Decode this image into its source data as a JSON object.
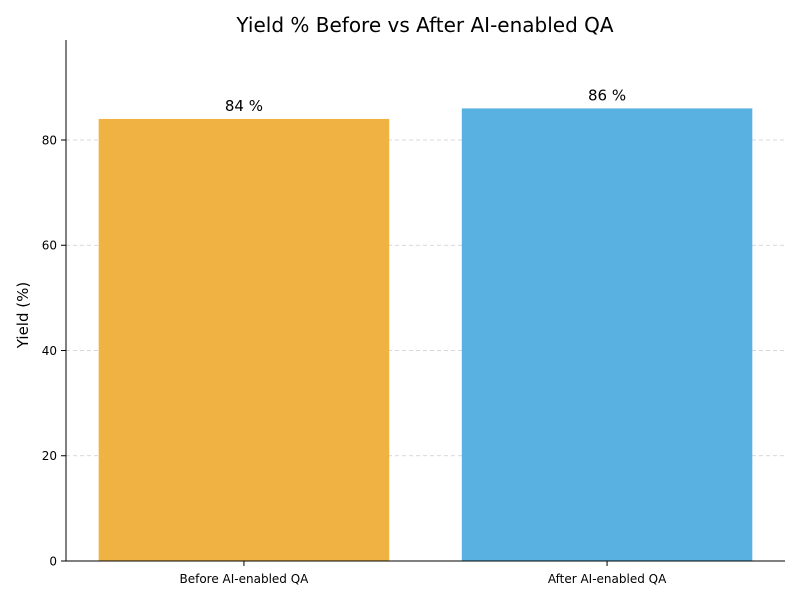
{
  "chart_data": {
    "type": "bar",
    "title": "Yield % Before vs After AI-enabled QA",
    "xlabel": "",
    "ylabel": "Yield (%)",
    "categories": [
      "Before AI-enabled QA",
      "After AI-enabled QA"
    ],
    "values": [
      84,
      86
    ],
    "value_labels": [
      "84 %",
      "86 %"
    ],
    "colors": [
      "#F0B343",
      "#58B1E1"
    ],
    "ylim": [
      0,
      99
    ],
    "yticks": [
      0,
      20,
      40,
      60,
      80
    ],
    "ytick_labels": [
      "0",
      "20",
      "40",
      "60",
      "80"
    ],
    "grid": "y-dashed",
    "legend": "none"
  }
}
